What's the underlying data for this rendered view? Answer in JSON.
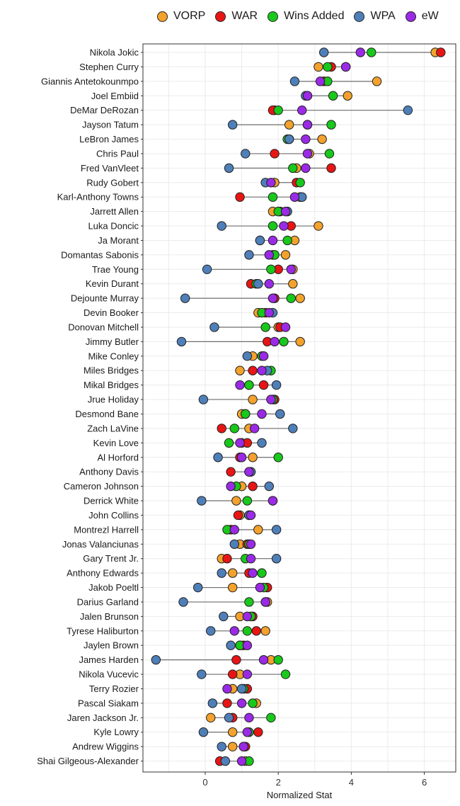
{
  "chart_data": {
    "type": "scatter",
    "title": "",
    "xlabel": "Normalized Stat",
    "ylabel": "",
    "xlim": [
      -1.6,
      6.6
    ],
    "xticks": [
      0,
      2,
      4,
      6
    ],
    "grid": true,
    "legend_position": "top",
    "series": [
      {
        "name": "VORP",
        "color": "#F2A22D"
      },
      {
        "name": "WAR",
        "color": "#E81515"
      },
      {
        "name": "Wins Added",
        "color": "#18C81A"
      },
      {
        "name": "WPA",
        "color": "#4F7FB8"
      },
      {
        "name": "eW",
        "color": "#9B2AE6"
      }
    ],
    "players": [
      {
        "name": "Nikola Jokic",
        "values": {
          "VORP": 6.3,
          "WAR": 6.45,
          "Wins Added": 4.55,
          "WPA": 3.25,
          "eW": 4.25
        }
      },
      {
        "name": "Stephen Curry",
        "values": {
          "VORP": 3.1,
          "WAR": 3.45,
          "Wins Added": 3.35,
          "WPA": 3.85,
          "eW": 3.85
        }
      },
      {
        "name": "Giannis Antetokounmpo",
        "values": {
          "VORP": 4.7,
          "WAR": 3.25,
          "Wins Added": 3.35,
          "WPA": 2.45,
          "eW": 3.15
        }
      },
      {
        "name": "Joel Embiid",
        "values": {
          "VORP": 3.9,
          "WAR": 2.8,
          "Wins Added": 3.5,
          "WPA": 2.75,
          "eW": 2.8
        }
      },
      {
        "name": "DeMar DeRozan",
        "values": {
          "VORP": 1.9,
          "WAR": 1.85,
          "Wins Added": 2.0,
          "WPA": 5.55,
          "eW": 2.65
        }
      },
      {
        "name": "Jayson Tatum",
        "values": {
          "VORP": 2.3,
          "WAR": 2.8,
          "Wins Added": 3.45,
          "WPA": 0.75,
          "eW": 2.8
        }
      },
      {
        "name": "LeBron James",
        "values": {
          "VORP": 3.2,
          "WAR": 2.3,
          "Wins Added": 2.25,
          "WPA": 2.3,
          "eW": 2.75
        }
      },
      {
        "name": "Chris Paul",
        "values": {
          "VORP": 2.85,
          "WAR": 1.9,
          "Wins Added": 3.4,
          "WPA": 1.1,
          "eW": 2.8
        }
      },
      {
        "name": "Fred VanVleet",
        "values": {
          "VORP": 2.5,
          "WAR": 3.45,
          "Wins Added": 2.4,
          "WPA": 0.65,
          "eW": 2.75
        }
      },
      {
        "name": "Rudy Gobert",
        "values": {
          "VORP": 1.9,
          "WAR": 2.5,
          "Wins Added": 2.6,
          "WPA": 1.65,
          "eW": 1.8
        }
      },
      {
        "name": "Karl-Anthony Towns",
        "values": {
          "VORP": 2.6,
          "WAR": 0.95,
          "Wins Added": 1.85,
          "WPA": 2.65,
          "eW": 2.45
        }
      },
      {
        "name": "Jarrett Allen",
        "values": {
          "VORP": 1.85,
          "WAR": 2.05,
          "Wins Added": 2.0,
          "WPA": 2.25,
          "eW": 2.2
        }
      },
      {
        "name": "Luka Doncic",
        "values": {
          "VORP": 3.1,
          "WAR": 2.35,
          "Wins Added": 1.85,
          "WPA": 0.45,
          "eW": 2.15
        }
      },
      {
        "name": "Ja Morant",
        "values": {
          "VORP": 2.45,
          "WAR": 1.5,
          "Wins Added": 2.25,
          "WPA": 1.5,
          "eW": 1.85
        }
      },
      {
        "name": "Domantas Sabonis",
        "values": {
          "VORP": 2.2,
          "WAR": 1.85,
          "Wins Added": 1.9,
          "WPA": 1.2,
          "eW": 1.75
        }
      },
      {
        "name": "Trae Young",
        "values": {
          "VORP": 2.4,
          "WAR": 2.0,
          "Wins Added": 1.8,
          "WPA": 0.05,
          "eW": 2.35
        }
      },
      {
        "name": "Kevin Durant",
        "values": {
          "VORP": 2.4,
          "WAR": 1.25,
          "Wins Added": 1.4,
          "WPA": 1.45,
          "eW": 1.75
        }
      },
      {
        "name": "Dejounte Murray",
        "values": {
          "VORP": 2.6,
          "WAR": 1.9,
          "Wins Added": 2.35,
          "WPA": -0.55,
          "eW": 1.85
        }
      },
      {
        "name": "Devin Booker",
        "values": {
          "VORP": 1.45,
          "WAR": 1.65,
          "Wins Added": 1.55,
          "WPA": 1.85,
          "eW": 1.75
        }
      },
      {
        "name": "Donovan Mitchell",
        "values": {
          "VORP": 2.0,
          "WAR": 2.05,
          "Wins Added": 1.65,
          "WPA": 0.25,
          "eW": 2.2
        }
      },
      {
        "name": "Jimmy Butler",
        "values": {
          "VORP": 2.6,
          "WAR": 1.7,
          "Wins Added": 2.15,
          "WPA": -0.65,
          "eW": 1.9
        }
      },
      {
        "name": "Mike Conley",
        "values": {
          "VORP": 1.3,
          "WAR": 1.6,
          "Wins Added": 1.55,
          "WPA": 1.15,
          "eW": 1.6
        }
      },
      {
        "name": "Miles Bridges",
        "values": {
          "VORP": 0.95,
          "WAR": 1.3,
          "Wins Added": 1.8,
          "WPA": 1.7,
          "eW": 1.55
        }
      },
      {
        "name": "Mikal Bridges",
        "values": {
          "VORP": 1.2,
          "WAR": 1.6,
          "Wins Added": 1.2,
          "WPA": 1.95,
          "eW": 0.95
        }
      },
      {
        "name": "Jrue Holiday",
        "values": {
          "VORP": 1.3,
          "WAR": 1.9,
          "Wins Added": 1.85,
          "WPA": -0.05,
          "eW": 1.8
        }
      },
      {
        "name": "Desmond Bane",
        "values": {
          "VORP": 1.0,
          "WAR": 1.1,
          "Wins Added": 1.1,
          "WPA": 2.05,
          "eW": 1.55
        }
      },
      {
        "name": "Zach LaVine",
        "values": {
          "VORP": 1.2,
          "WAR": 0.45,
          "Wins Added": 0.8,
          "WPA": 2.4,
          "eW": 1.35
        }
      },
      {
        "name": "Kevin Love",
        "values": {
          "VORP": 1.0,
          "WAR": 1.15,
          "Wins Added": 0.65,
          "WPA": 1.55,
          "eW": 0.95
        }
      },
      {
        "name": "Al Horford",
        "values": {
          "VORP": 1.3,
          "WAR": 0.95,
          "Wins Added": 2.0,
          "WPA": 0.35,
          "eW": 1.0
        }
      },
      {
        "name": "Anthony Davis",
        "values": {
          "VORP": 1.2,
          "WAR": 0.7,
          "Wins Added": 1.25,
          "WPA": 1.25,
          "eW": 1.2
        }
      },
      {
        "name": "Cameron Johnson",
        "values": {
          "VORP": 1.0,
          "WAR": 1.3,
          "Wins Added": 0.85,
          "WPA": 1.75,
          "eW": 0.7
        }
      },
      {
        "name": "Derrick White",
        "values": {
          "VORP": 0.85,
          "WAR": 1.85,
          "Wins Added": 1.15,
          "WPA": -0.1,
          "eW": 1.85
        }
      },
      {
        "name": "John Collins",
        "values": {
          "VORP": 0.95,
          "WAR": 0.9,
          "Wins Added": 1.2,
          "WPA": 1.2,
          "eW": 1.25
        }
      },
      {
        "name": "Montrezl Harrell",
        "values": {
          "VORP": 1.45,
          "WAR": 0.7,
          "Wins Added": 0.6,
          "WPA": 1.95,
          "eW": 0.8
        }
      },
      {
        "name": "Jonas Valanciunas",
        "values": {
          "VORP": 0.95,
          "WAR": 1.15,
          "Wins Added": 1.2,
          "WPA": 0.8,
          "eW": 1.25
        }
      },
      {
        "name": "Gary Trent Jr.",
        "values": {
          "VORP": 0.45,
          "WAR": 0.6,
          "Wins Added": 1.1,
          "WPA": 1.95,
          "eW": 1.25
        }
      },
      {
        "name": "Anthony Edwards",
        "values": {
          "VORP": 0.75,
          "WAR": 1.2,
          "Wins Added": 1.55,
          "WPA": 0.45,
          "eW": 1.3
        }
      },
      {
        "name": "Jakob Poeltl",
        "values": {
          "VORP": 0.75,
          "WAR": 1.7,
          "Wins Added": 1.6,
          "WPA": -0.2,
          "eW": 1.5
        }
      },
      {
        "name": "Darius Garland",
        "values": {
          "VORP": 1.7,
          "WAR": 1.65,
          "Wins Added": 1.2,
          "WPA": -0.6,
          "eW": 1.65
        }
      },
      {
        "name": "Jalen Brunson",
        "values": {
          "VORP": 0.95,
          "WAR": 1.3,
          "Wins Added": 1.25,
          "WPA": 0.5,
          "eW": 1.15
        }
      },
      {
        "name": "Tyrese Haliburton",
        "values": {
          "VORP": 1.65,
          "WAR": 1.4,
          "Wins Added": 1.15,
          "WPA": 0.15,
          "eW": 0.8
        }
      },
      {
        "name": "Jaylen Brown",
        "values": {
          "VORP": 0.95,
          "WAR": 1.05,
          "Wins Added": 0.95,
          "WPA": 0.7,
          "eW": 1.15
        }
      },
      {
        "name": "James Harden",
        "values": {
          "VORP": 1.8,
          "WAR": 0.85,
          "Wins Added": 2.0,
          "WPA": -1.35,
          "eW": 1.6
        }
      },
      {
        "name": "Nikola Vucevic",
        "values": {
          "VORP": 0.95,
          "WAR": 0.75,
          "Wins Added": 2.2,
          "WPA": -0.1,
          "eW": 1.15
        }
      },
      {
        "name": "Terry Rozier",
        "values": {
          "VORP": 0.75,
          "WAR": 1.15,
          "Wins Added": 1.05,
          "WPA": 1.0,
          "eW": 0.6
        }
      },
      {
        "name": "Pascal Siakam",
        "values": {
          "VORP": 1.4,
          "WAR": 0.6,
          "Wins Added": 1.3,
          "WPA": 0.2,
          "eW": 1.0
        }
      },
      {
        "name": "Jaren Jackson Jr.",
        "values": {
          "VORP": 0.15,
          "WAR": 0.75,
          "Wins Added": 1.8,
          "WPA": 0.65,
          "eW": 1.2
        }
      },
      {
        "name": "Kyle Lowry",
        "values": {
          "VORP": 0.75,
          "WAR": 1.45,
          "Wins Added": 1.2,
          "WPA": -0.05,
          "eW": 1.15
        }
      },
      {
        "name": "Andrew Wiggins",
        "values": {
          "VORP": 0.75,
          "WAR": 1.1,
          "Wins Added": 1.05,
          "WPA": 0.45,
          "eW": 1.05
        }
      },
      {
        "name": "Shai Gilgeous-Alexander",
        "values": {
          "VORP": 1.1,
          "WAR": 0.4,
          "Wins Added": 1.2,
          "WPA": 0.55,
          "eW": 1.0
        }
      }
    ]
  }
}
